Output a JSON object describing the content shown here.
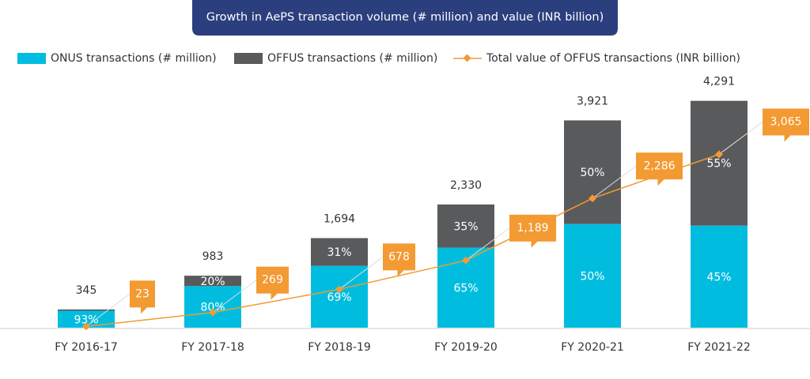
{
  "chart_data": {
    "type": "bar",
    "title": "Growth in AePS transaction volume (# million) and value (INR billion)",
    "categories": [
      "FY 2016-17",
      "FY 2017-18",
      "FY 2018-19",
      "FY 2019-20",
      "FY 2020-21",
      "FY 2021-22"
    ],
    "totals": [
      345,
      983,
      1694,
      2330,
      3921,
      4291
    ],
    "total_labels": [
      "345",
      "983",
      "1,694",
      "2,330",
      "3,921",
      "4,291"
    ],
    "series": [
      {
        "name": "ONUS transactions (# million)",
        "color": "#00bde0",
        "values": [
          93,
          80,
          69,
          65,
          50,
          45
        ],
        "value_labels": [
          "93%",
          "80%",
          "69%",
          "65%",
          "50%",
          "45%"
        ]
      },
      {
        "name": "OFFUS transactions (# million)",
        "color": "#595a5c",
        "values": [
          7,
          20,
          31,
          35,
          50,
          55
        ],
        "value_labels": [
          null,
          "20%",
          "31%",
          "35%",
          "50%",
          "55%"
        ]
      },
      {
        "name": "Total value of OFFUS transactions (INR billion)",
        "color": "#f39a32",
        "type": "line",
        "axis": "y2",
        "values": [
          23,
          269,
          678,
          1189,
          2286,
          3065
        ],
        "value_labels": [
          "23",
          "269",
          "678",
          "1,189",
          "2,286",
          "3,065"
        ]
      }
    ],
    "ylim": [
      0,
      4600
    ],
    "y2lim": [
      0,
      4300
    ]
  }
}
